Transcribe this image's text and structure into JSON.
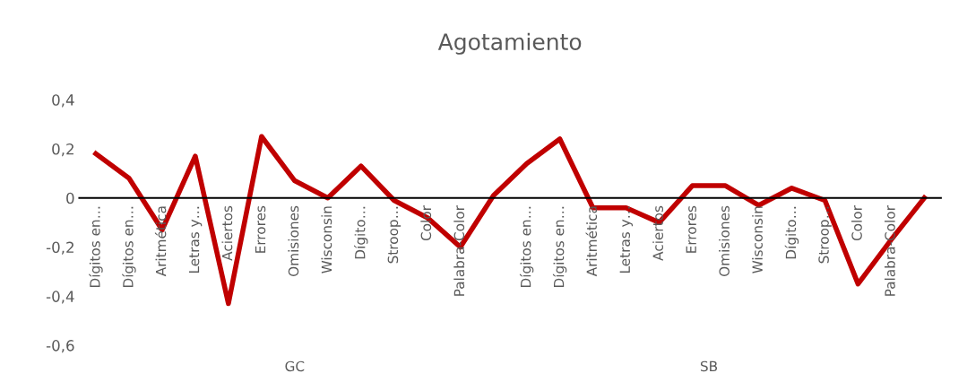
{
  "chart_data": {
    "type": "line",
    "title": "Agotamiento",
    "categories": [
      "Dígitos en…",
      "Dígitos en…",
      "Aritmética",
      "Letras y…",
      "Aciertos",
      "Errores",
      "Omisiones",
      "Wisconsin",
      "Dígito…",
      "Stroop…",
      "Color",
      "Palabra-Color",
      null,
      "Dígitos en…",
      "Dígitos en…",
      "Aritmética",
      "Letras y…",
      "Aciertos",
      "Errores",
      "Omisiones",
      "Wisconsin",
      "Dígito…",
      "Stroop…",
      "Color",
      "Palabra-Color",
      null
    ],
    "series": [
      {
        "color": "#c00000",
        "values": [
          0.18,
          0.08,
          -0.13,
          0.17,
          -0.43,
          0.25,
          0.07,
          0,
          0.13,
          -0.01,
          -0.08,
          -0.2,
          0.01,
          0.14,
          0.24,
          -0.04,
          -0.04,
          -0.1,
          0.05,
          0.05,
          -0.03,
          0.04,
          -0.01,
          -0.35,
          -0.17,
          0
        ]
      }
    ],
    "ylim": [
      -0.6,
      0.4
    ],
    "yticks": [
      {
        "value": 0.4,
        "label": "0,4"
      },
      {
        "value": 0.2,
        "label": "0,2"
      },
      {
        "value": 0,
        "label": "0"
      },
      {
        "value": -0.2,
        "label": "-0,2"
      },
      {
        "value": -0.4,
        "label": "-0,4"
      },
      {
        "value": -0.6,
        "label": "-0,6"
      }
    ],
    "annotations": [
      "GC",
      "SB"
    ],
    "grid": false,
    "legend": false,
    "marker": "none",
    "line_style": "solid"
  }
}
